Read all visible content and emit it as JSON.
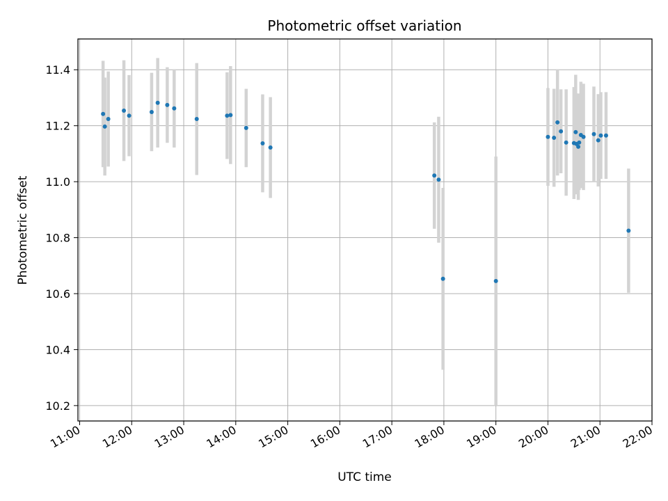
{
  "chart_data": {
    "type": "scatter",
    "title": "Photometric offset variation",
    "xlabel": "UTC time",
    "ylabel": "Photometric offset",
    "x_tick_labels": [
      "11:00",
      "12:00",
      "13:00",
      "14:00",
      "15:00",
      "16:00",
      "17:00",
      "18:00",
      "19:00",
      "20:00",
      "21:00",
      "22:00"
    ],
    "y_ticks": [
      10.2,
      10.4,
      10.6,
      10.8,
      11.0,
      11.2,
      11.4
    ],
    "y_tick_labels": [
      "10.2",
      "10.4",
      "10.6",
      "10.8",
      "11.0",
      "11.2",
      "11.4"
    ],
    "xlim": [
      "10:58",
      "22:00"
    ],
    "ylim": [
      10.145,
      11.51
    ],
    "grid": true,
    "point_color": "#1f77b4",
    "errorbar_color": "#d3d3d3",
    "points": [
      {
        "x": "11:27",
        "y": 11.242,
        "yerr": 0.19
      },
      {
        "x": "11:29",
        "y": 11.197,
        "yerr": 0.175
      },
      {
        "x": "11:33",
        "y": 11.224,
        "yerr": 0.17
      },
      {
        "x": "11:51",
        "y": 11.254,
        "yerr": 0.18
      },
      {
        "x": "11:57",
        "y": 11.236,
        "yerr": 0.145
      },
      {
        "x": "12:23",
        "y": 11.249,
        "yerr": 0.14
      },
      {
        "x": "12:30",
        "y": 11.282,
        "yerr": 0.16
      },
      {
        "x": "12:41",
        "y": 11.274,
        "yerr": 0.135
      },
      {
        "x": "12:49",
        "y": 11.262,
        "yerr": 0.14
      },
      {
        "x": "13:15",
        "y": 11.224,
        "yerr": 0.2
      },
      {
        "x": "13:50",
        "y": 11.236,
        "yerr": 0.155
      },
      {
        "x": "13:54",
        "y": 11.238,
        "yerr": 0.175
      },
      {
        "x": "14:12",
        "y": 11.192,
        "yerr": 0.14
      },
      {
        "x": "14:31",
        "y": 11.137,
        "yerr": 0.175
      },
      {
        "x": "14:40",
        "y": 11.122,
        "yerr": 0.18
      },
      {
        "x": "17:49",
        "y": 11.022,
        "yerr": 0.19
      },
      {
        "x": "17:54",
        "y": 11.007,
        "yerr": 0.225
      },
      {
        "x": "17:59",
        "y": 10.653,
        "yerr": 0.325
      },
      {
        "x": "19:00",
        "y": 10.645,
        "yerr": 0.445
      },
      {
        "x": "20:00",
        "y": 11.16,
        "yerr": 0.175
      },
      {
        "x": "20:07",
        "y": 11.157,
        "yerr": 0.175
      },
      {
        "x": "20:11",
        "y": 11.212,
        "yerr": 0.19
      },
      {
        "x": "20:15",
        "y": 11.18,
        "yerr": 0.15
      },
      {
        "x": "20:21",
        "y": 11.14,
        "yerr": 0.19
      },
      {
        "x": "20:30",
        "y": 11.138,
        "yerr": 0.2
      },
      {
        "x": "20:32",
        "y": 11.177,
        "yerr": 0.205
      },
      {
        "x": "20:33",
        "y": 11.135,
        "yerr": 0.18
      },
      {
        "x": "20:35",
        "y": 11.125,
        "yerr": 0.19
      },
      {
        "x": "20:36",
        "y": 11.14,
        "yerr": 0.17
      },
      {
        "x": "20:38",
        "y": 11.167,
        "yerr": 0.19
      },
      {
        "x": "20:41",
        "y": 11.16,
        "yerr": 0.19
      },
      {
        "x": "20:53",
        "y": 11.17,
        "yerr": 0.17
      },
      {
        "x": "20:58",
        "y": 11.148,
        "yerr": 0.165
      },
      {
        "x": "21:01",
        "y": 11.165,
        "yerr": 0.155
      },
      {
        "x": "21:07",
        "y": 11.165,
        "yerr": 0.155
      },
      {
        "x": "21:33",
        "y": 10.825,
        "yerr": 0.222
      }
    ]
  }
}
